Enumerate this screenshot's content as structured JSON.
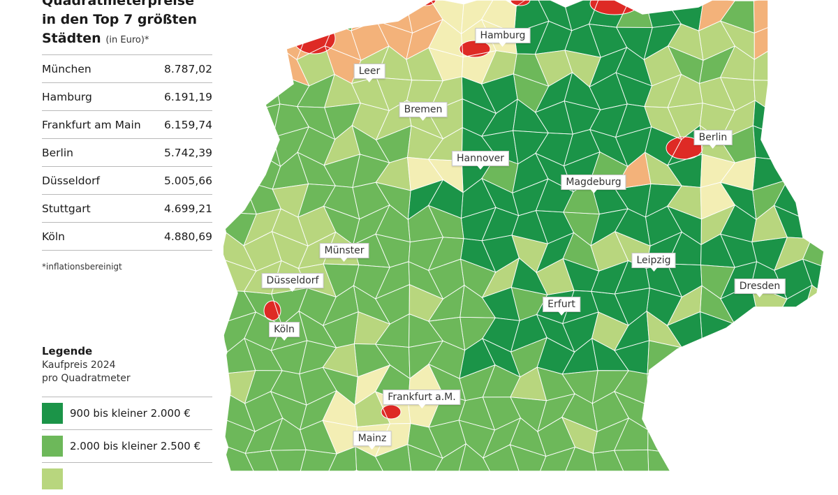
{
  "title": {
    "line1": "Quadratmeterpreise",
    "line2": "in den Top 7 größten",
    "line3": "Städten",
    "unit": "(in Euro)*"
  },
  "price_table": [
    {
      "city": "München",
      "price": "8.787,02"
    },
    {
      "city": "Hamburg",
      "price": "6.191,19"
    },
    {
      "city": "Frankfurt am Main",
      "price": "6.159,74"
    },
    {
      "city": "Berlin",
      "price": "5.742,39"
    },
    {
      "city": "Düsseldorf",
      "price": "5.005,66"
    },
    {
      "city": "Stuttgart",
      "price": "4.699,21"
    },
    {
      "city": "Köln",
      "price": "4.880,69"
    }
  ],
  "footnote": "*inflationsbereinigt",
  "legend": {
    "title": "Legende",
    "subtitle_line1": "Kaufpreis 2024",
    "subtitle_line2": "pro Quadratmeter",
    "items": [
      {
        "label": "900 bis kleiner 2.000 €",
        "color": "#1b9448"
      },
      {
        "label": "2.000 bis kleiner 2.500 €",
        "color": "#6db85a"
      },
      {
        "label": "",
        "color": "#b8d67e"
      }
    ]
  },
  "colors": {
    "dark_green": "#1b9448",
    "mid_green": "#6db85a",
    "light_green": "#b8d67e",
    "cream": "#f3eeb4",
    "orange": "#f3b27a",
    "red": "#de2a25"
  },
  "cities": [
    {
      "name": "Hamburg"
    },
    {
      "name": "Leer"
    },
    {
      "name": "Bremen"
    },
    {
      "name": "Berlin"
    },
    {
      "name": "Hannover"
    },
    {
      "name": "Magdeburg"
    },
    {
      "name": "Münster"
    },
    {
      "name": "Leipzig"
    },
    {
      "name": "Düsseldorf"
    },
    {
      "name": "Dresden"
    },
    {
      "name": "Erfurt"
    },
    {
      "name": "Köln"
    },
    {
      "name": "Frankfurt a.M."
    },
    {
      "name": "Mainz"
    }
  ]
}
